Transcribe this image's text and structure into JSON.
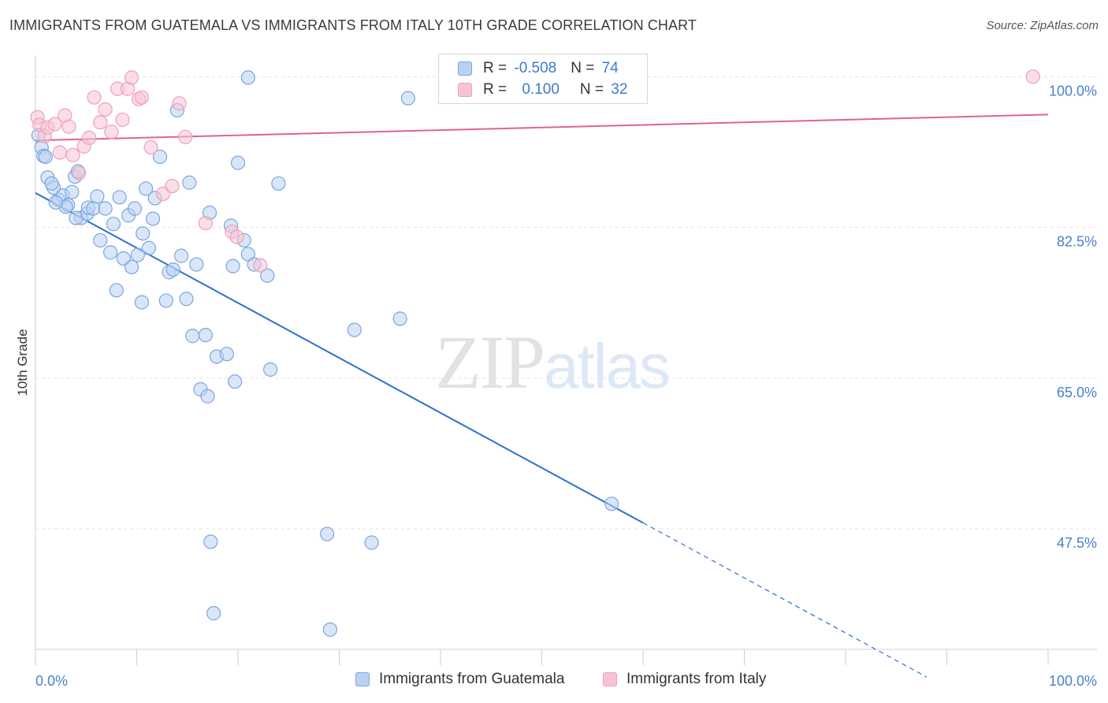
{
  "header": {
    "title": "IMMIGRANTS FROM GUATEMALA VS IMMIGRANTS FROM ITALY 10TH GRADE CORRELATION CHART",
    "source": "Source: ZipAtlas.com"
  },
  "watermark": {
    "zip": "ZIP",
    "atlas": "atlas"
  },
  "legend": {
    "rows": [
      {
        "r_label": "R = ",
        "r_value": "-0.508",
        "n_label": "N = ",
        "n_value": "74"
      },
      {
        "r_label": "R = ",
        "r_value": "0.100",
        "n_label": "N = ",
        "n_value": "32"
      }
    ]
  },
  "bottom_legend": {
    "guatemala": "Immigrants from Guatemala",
    "italy": "Immigrants from Italy"
  },
  "colors": {
    "guatemala_fill": "#b9d1f2",
    "guatemala_stroke": "#7aa6e0",
    "guatemala_line": "#2a6fd0",
    "italy_fill": "#f7c3d4",
    "italy_stroke": "#eea0ba",
    "italy_line": "#e0638c",
    "grid": "#e3e3e3",
    "tick_label": "#4a7fd0"
  },
  "chart_data": {
    "type": "scatter",
    "title": "IMMIGRANTS FROM GUATEMALA VS IMMIGRANTS FROM ITALY 10TH GRADE CORRELATION CHART",
    "xlabel": "",
    "ylabel": "10th Grade",
    "xlim": [
      0,
      100
    ],
    "ylim": [
      33.5,
      102.5
    ],
    "y_ticks": [
      47.5,
      65.0,
      82.5,
      100.0
    ],
    "y_tick_labels": [
      "47.5%",
      "65.0%",
      "82.5%",
      "100.0%"
    ],
    "x_tick_labels": [
      "0.0%",
      "100.0%"
    ],
    "grid": true,
    "legend_position": "top-center",
    "series": [
      {
        "name": "Immigrants from Guatemala",
        "points": [
          [
            0.3,
            93.2
          ],
          [
            0.6,
            91.8
          ],
          [
            0.8,
            90.8
          ],
          [
            1.2,
            88.3
          ],
          [
            1.8,
            87.1
          ],
          [
            1.6,
            87.6
          ],
          [
            2.3,
            85.7
          ],
          [
            2.7,
            86.2
          ],
          [
            3.2,
            85.1
          ],
          [
            3.6,
            86.6
          ],
          [
            3.9,
            88.4
          ],
          [
            4.2,
            89.0
          ],
          [
            4.5,
            83.6
          ],
          [
            5.1,
            84.1
          ],
          [
            5.2,
            84.8
          ],
          [
            5.7,
            84.7
          ],
          [
            6.1,
            86.1
          ],
          [
            6.4,
            81.0
          ],
          [
            6.9,
            84.7
          ],
          [
            7.4,
            79.6
          ],
          [
            7.7,
            82.9
          ],
          [
            8.3,
            86.0
          ],
          [
            8.7,
            78.9
          ],
          [
            9.2,
            83.9
          ],
          [
            9.5,
            77.9
          ],
          [
            9.8,
            84.7
          ],
          [
            10.1,
            79.3
          ],
          [
            10.6,
            81.8
          ],
          [
            10.9,
            87.0
          ],
          [
            11.2,
            80.1
          ],
          [
            11.6,
            83.5
          ],
          [
            11.8,
            85.9
          ],
          [
            12.3,
            90.7
          ],
          [
            12.9,
            74.0
          ],
          [
            13.2,
            77.3
          ],
          [
            13.6,
            77.6
          ],
          [
            14.0,
            96.1
          ],
          [
            14.4,
            79.2
          ],
          [
            14.9,
            74.2
          ],
          [
            15.2,
            87.7
          ],
          [
            15.5,
            69.9
          ],
          [
            15.9,
            78.2
          ],
          [
            16.3,
            63.7
          ],
          [
            16.8,
            70.0
          ],
          [
            17.0,
            62.9
          ],
          [
            17.3,
            46.0
          ],
          [
            17.6,
            37.7
          ],
          [
            17.9,
            67.5
          ],
          [
            18.9,
            67.8
          ],
          [
            19.3,
            82.7
          ],
          [
            19.5,
            78.0
          ],
          [
            19.7,
            64.6
          ],
          [
            20.0,
            90.0
          ],
          [
            20.6,
            81.0
          ],
          [
            21.0,
            79.4
          ],
          [
            21.6,
            78.2
          ],
          [
            22.9,
            76.9
          ],
          [
            23.2,
            66.0
          ],
          [
            24.0,
            87.6
          ],
          [
            28.8,
            46.9
          ],
          [
            29.1,
            35.8
          ],
          [
            31.5,
            70.6
          ],
          [
            33.2,
            45.9
          ],
          [
            36.0,
            71.9
          ],
          [
            36.8,
            97.5
          ],
          [
            56.9,
            50.4
          ],
          [
            21.0,
            99.9
          ],
          [
            4.0,
            83.6
          ],
          [
            8.0,
            75.2
          ],
          [
            10.5,
            73.8
          ],
          [
            3.0,
            84.9
          ],
          [
            17.2,
            84.2
          ],
          [
            1.0,
            90.7
          ],
          [
            2.0,
            85.4
          ]
        ]
      },
      {
        "name": "Immigrants from Italy",
        "points": [
          [
            0.2,
            95.3
          ],
          [
            0.4,
            94.4
          ],
          [
            0.9,
            93.1
          ],
          [
            1.2,
            94.1
          ],
          [
            1.9,
            94.5
          ],
          [
            2.4,
            91.2
          ],
          [
            2.9,
            95.5
          ],
          [
            3.3,
            94.2
          ],
          [
            3.7,
            90.9
          ],
          [
            4.3,
            88.8
          ],
          [
            4.8,
            91.9
          ],
          [
            5.3,
            92.9
          ],
          [
            5.8,
            97.6
          ],
          [
            6.4,
            94.7
          ],
          [
            6.9,
            96.2
          ],
          [
            7.5,
            93.6
          ],
          [
            8.1,
            98.6
          ],
          [
            8.6,
            95.0
          ],
          [
            9.1,
            98.6
          ],
          [
            9.5,
            99.9
          ],
          [
            10.2,
            97.4
          ],
          [
            10.5,
            97.6
          ],
          [
            11.4,
            91.8
          ],
          [
            12.6,
            86.4
          ],
          [
            13.5,
            87.3
          ],
          [
            14.2,
            96.9
          ],
          [
            14.8,
            93.0
          ],
          [
            16.8,
            83.0
          ],
          [
            19.4,
            82.0
          ],
          [
            19.9,
            81.4
          ],
          [
            22.2,
            78.1
          ],
          [
            98.5,
            100.0
          ]
        ]
      }
    ],
    "trend_lines": [
      {
        "series": "Immigrants from Guatemala",
        "solid": [
          [
            0,
            86.5
          ],
          [
            60,
            48.2
          ]
        ],
        "dashed": [
          [
            60,
            48.2
          ],
          [
            88,
            30.3
          ]
        ]
      },
      {
        "series": "Immigrants from Italy",
        "solid": [
          [
            0,
            92.6
          ],
          [
            100,
            95.6
          ]
        ]
      }
    ]
  }
}
